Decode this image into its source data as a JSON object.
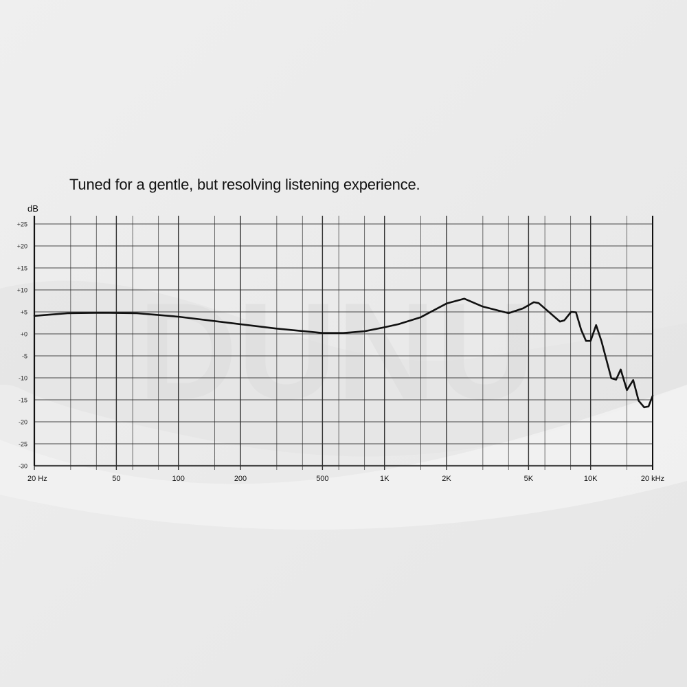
{
  "title": "Tuned for a gentle, but resolving listening experience.",
  "watermark": "DUNU",
  "colors": {
    "background": "#ececec",
    "grid": "#333333",
    "curve": "#111111"
  },
  "chart_data": {
    "type": "line",
    "title": "Tuned for a gentle, but resolving listening experience.",
    "ylabel": "dB",
    "xlabel": "",
    "x_scale": "log",
    "xlim": [
      20,
      20000
    ],
    "ylim": [
      -30,
      27
    ],
    "grid": true,
    "y_ticks": [
      25,
      20,
      15,
      10,
      5,
      0,
      -5,
      -10,
      -15,
      -20,
      -25,
      -30
    ],
    "y_tick_labels": [
      "+25",
      "+20",
      "+15",
      "+10",
      "+5",
      "+0",
      "-5",
      "-10",
      "-15",
      "-20",
      "-25",
      "-30"
    ],
    "x_ticks": [
      20,
      50,
      100,
      200,
      500,
      1000,
      2000,
      5000,
      10000,
      20000
    ],
    "x_tick_labels": [
      "20 Hz",
      "50",
      "100",
      "200",
      "500",
      "1K",
      "2K",
      "5K",
      "10K",
      "20 kHz"
    ],
    "x_gridlines": [
      20,
      30,
      40,
      50,
      60,
      80,
      100,
      150,
      200,
      300,
      400,
      500,
      600,
      800,
      1000,
      1500,
      2000,
      3000,
      4000,
      5000,
      6000,
      8000,
      10000,
      15000,
      20000
    ],
    "series": [
      {
        "x": [
          20,
          29,
          43,
          63,
          100,
          200,
          300,
          500,
          630,
          800,
          1000,
          1170,
          1500,
          2000,
          2440,
          3000,
          4000,
          4700,
          5300,
          5600,
          7100,
          7460,
          8040,
          8490,
          9000,
          9500,
          10000,
          10630,
          11300,
          12600,
          13300,
          14000,
          15000,
          16100,
          17100,
          18200,
          19100,
          20000
        ],
        "y": [
          4.1,
          4.7,
          4.8,
          4.7,
          3.9,
          2.2,
          1.2,
          0.2,
          0.2,
          0.6,
          1.5,
          2.2,
          3.8,
          6.9,
          8.0,
          6.2,
          4.7,
          5.8,
          7.2,
          7.0,
          2.8,
          3.1,
          5.0,
          4.9,
          0.9,
          -1.6,
          -1.6,
          2.0,
          -1.7,
          -10.1,
          -10.4,
          -8.1,
          -12.8,
          -10.5,
          -15.2,
          -16.7,
          -16.5,
          -14.1
        ]
      }
    ]
  }
}
